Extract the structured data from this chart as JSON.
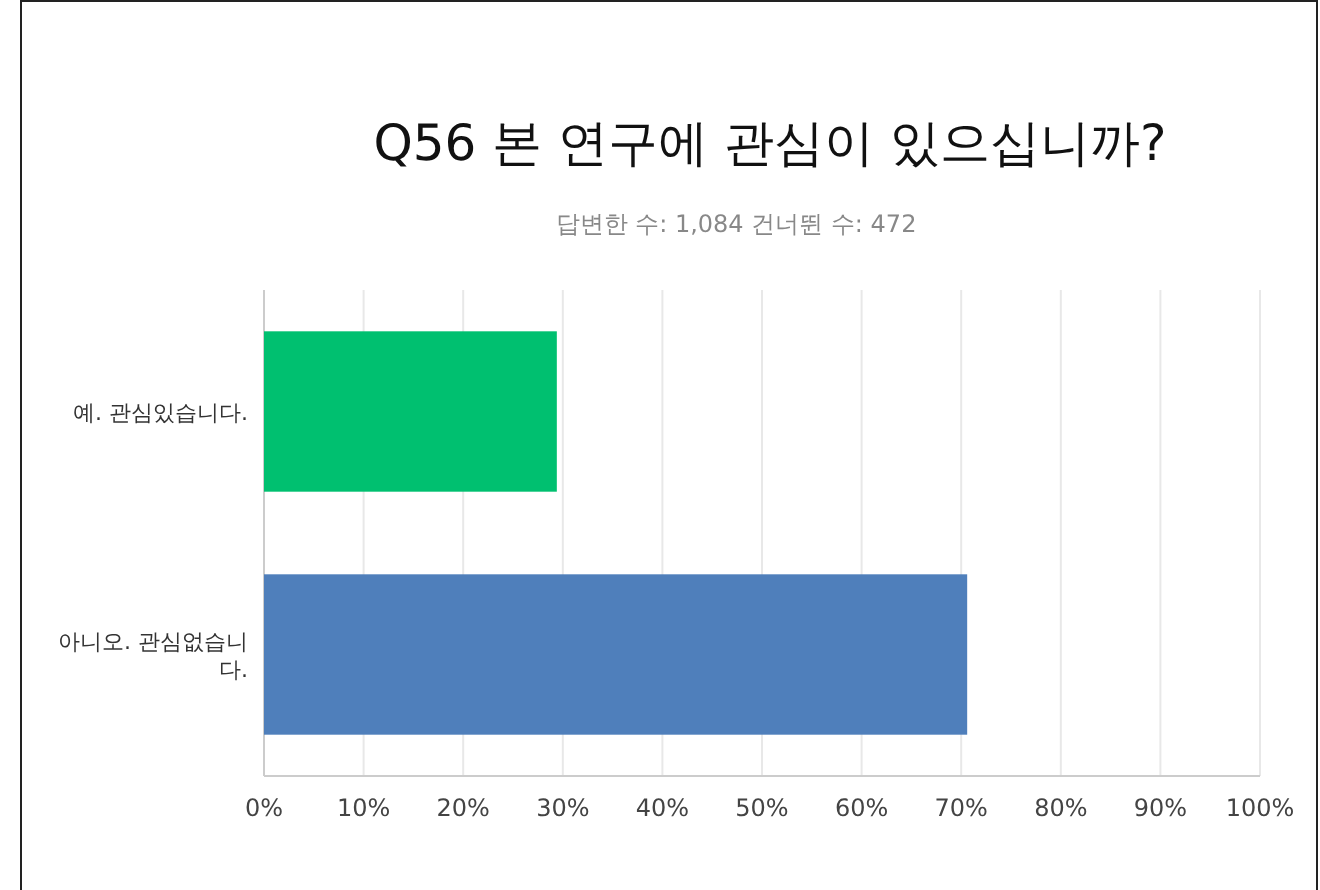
{
  "chart_data": {
    "type": "bar",
    "orientation": "horizontal",
    "title": "Q56 본 연구에 관심이 있으십니까?",
    "subtitle": "답변한 수: 1,084     건너뛴 수: 472",
    "categories": [
      "예. 관심있습니다.",
      "아니오. 관심없습니다."
    ],
    "values": [
      29.4,
      70.6
    ],
    "colors": [
      "#00c070",
      "#4f7fbb"
    ],
    "xlim": [
      0,
      100
    ],
    "xticks": [
      {
        "value": 0,
        "label": "0%"
      },
      {
        "value": 10,
        "label": "10%"
      },
      {
        "value": 20,
        "label": "20%"
      },
      {
        "value": 30,
        "label": "30%"
      },
      {
        "value": 40,
        "label": "40%"
      },
      {
        "value": 50,
        "label": "50%"
      },
      {
        "value": 60,
        "label": "60%"
      },
      {
        "value": 70,
        "label": "70%"
      },
      {
        "value": 80,
        "label": "80%"
      },
      {
        "value": 90,
        "label": "90%"
      },
      {
        "value": 100,
        "label": "100%"
      }
    ],
    "grid": "x"
  }
}
